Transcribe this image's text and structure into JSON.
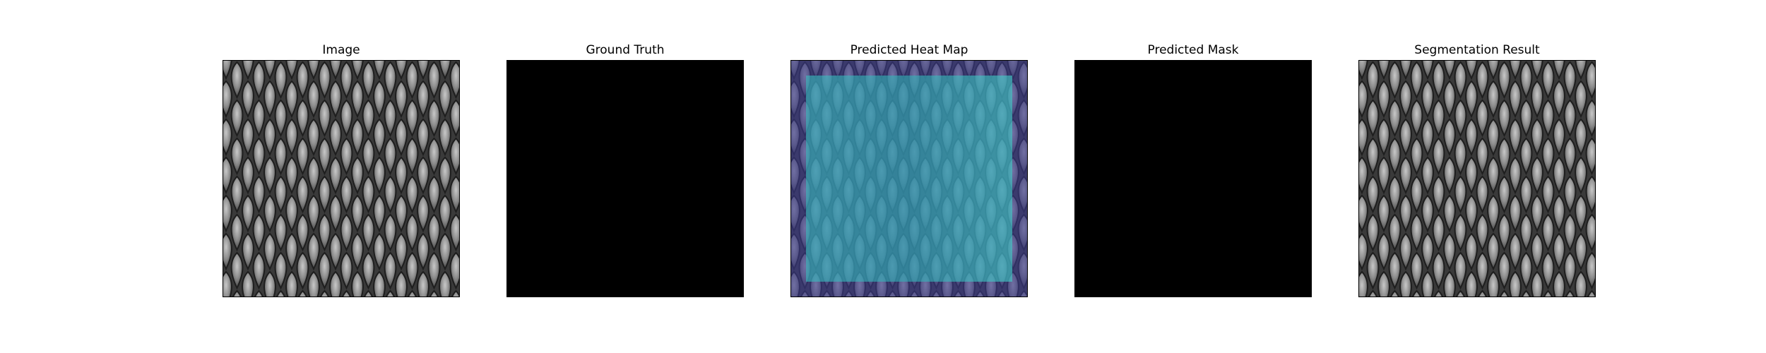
{
  "figure": {
    "panels": [
      {
        "title": "Image"
      },
      {
        "title": "Ground Truth"
      },
      {
        "title": "Predicted Heat Map"
      },
      {
        "title": "Predicted Mask"
      },
      {
        "title": "Segmentation Result"
      }
    ]
  },
  "colors": {
    "background": "#ffffff",
    "frame": "#000000",
    "mask_empty": "#000000",
    "heatmap_low": "#3c3a8c",
    "heatmap_high": "#3fd1c9"
  }
}
